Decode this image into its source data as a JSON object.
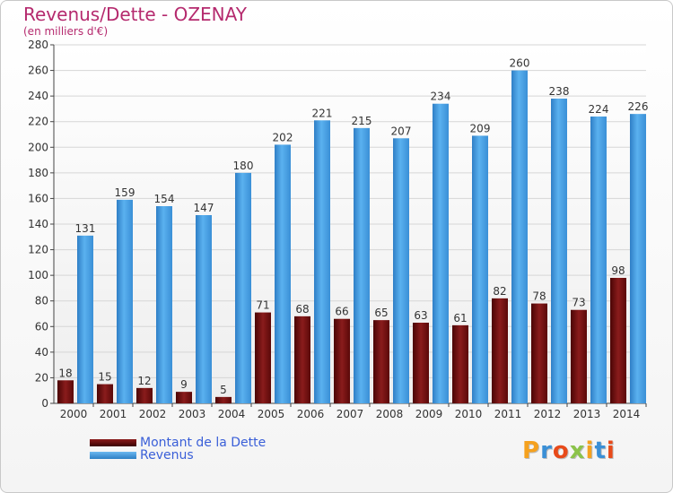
{
  "chart_data": {
    "type": "bar",
    "title": "Revenus/Dette - OZENAY",
    "subtitle": "(en milliers d'€)",
    "categories": [
      "2000",
      "2001",
      "2002",
      "2003",
      "2004",
      "2005",
      "2006",
      "2007",
      "2008",
      "2009",
      "2010",
      "2011",
      "2012",
      "2013",
      "2014"
    ],
    "series": [
      {
        "name": "Montant de la Dette",
        "color": "#7a1010",
        "values": [
          18,
          15,
          12,
          9,
          5,
          71,
          68,
          66,
          65,
          63,
          61,
          82,
          78,
          73,
          98
        ]
      },
      {
        "name": "Revenus",
        "color": "#4aa3e8",
        "values": [
          131,
          159,
          154,
          147,
          180,
          202,
          221,
          215,
          207,
          234,
          209,
          260,
          238,
          224,
          226
        ]
      }
    ],
    "y_ticks": [
      0,
      20,
      40,
      60,
      80,
      100,
      120,
      140,
      160,
      180,
      200,
      220,
      240,
      260,
      280
    ],
    "ylim": [
      0,
      280
    ],
    "grid": true,
    "legend_position": "bottom-left"
  },
  "logo": {
    "text": "Proxiti",
    "letters": [
      "P",
      "r",
      "o",
      "x",
      "i",
      "t",
      "i"
    ],
    "colors": [
      "#f5a11e",
      "#3a8fd6",
      "#e84a1a",
      "#8bc34a",
      "#f5a11e",
      "#3a8fd6",
      "#e84a1a"
    ]
  }
}
